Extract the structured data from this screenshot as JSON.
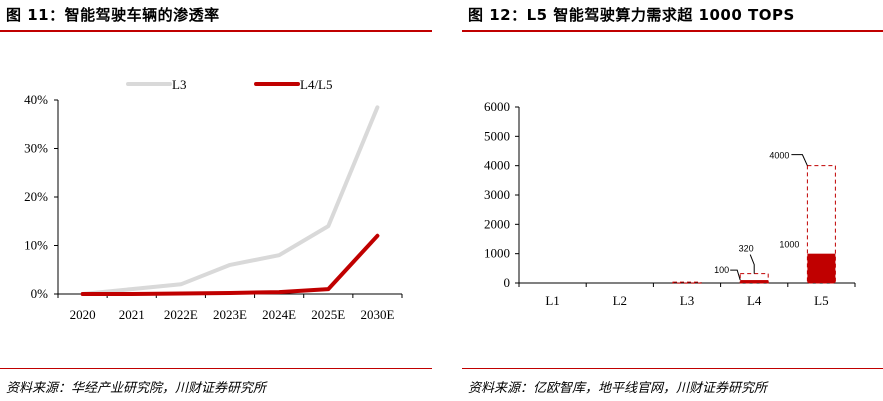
{
  "left": {
    "title": "图 11：智能驾驶车辆的渗透率",
    "source": "资料来源：华经产业研究院，川财证券研究所",
    "colors": {
      "rule": "#c00000",
      "l3": "#d9d9d9",
      "l45": "#c00000"
    }
  },
  "right": {
    "title": "图 12：L5 智能驾驶算力需求超 1000 TOPS",
    "source": "资料来源：亿欧智库，地平线官网，川财证券研究所",
    "colors": {
      "rule": "#c00000",
      "bar": "#c00000",
      "range": "#c00000"
    }
  },
  "chart_data": [
    {
      "type": "line",
      "x": [
        "2020",
        "2021",
        "2022E",
        "2023E",
        "2024E",
        "2025E",
        "2030E"
      ],
      "series": [
        {
          "name": "L3",
          "values": [
            0.0,
            1.0,
            2.0,
            6.0,
            8.0,
            14.0,
            38.5
          ]
        },
        {
          "name": "L4/L5",
          "values": [
            0.0,
            0.0,
            0.1,
            0.2,
            0.4,
            1.0,
            12.0
          ]
        }
      ],
      "ylim": [
        0,
        40
      ],
      "yticks": [
        "0%",
        "10%",
        "20%",
        "30%",
        "40%"
      ],
      "legend": "top",
      "grid": false
    },
    {
      "type": "bar",
      "categories": [
        "L1",
        "L2",
        "L3",
        "L4",
        "L5"
      ],
      "values": [
        0,
        0,
        0,
        100,
        1000
      ],
      "range_max": [
        0,
        0,
        30,
        320,
        4000
      ],
      "data_labels": [
        {
          "category": "L4",
          "text": "100"
        },
        {
          "category": "L4",
          "text": "320"
        },
        {
          "category": "L5",
          "text": "1000"
        },
        {
          "category": "L5",
          "text": "4000"
        }
      ],
      "ylim": [
        0,
        6000
      ],
      "yticks": [
        "0",
        "1000",
        "2000",
        "3000",
        "4000",
        "5000",
        "6000"
      ],
      "grid": false
    }
  ]
}
